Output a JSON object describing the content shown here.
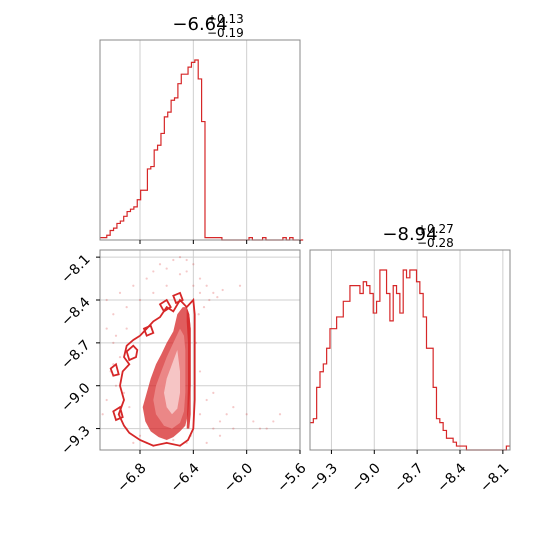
{
  "chart_data": [
    {
      "type": "histogram",
      "panel": "top-left",
      "title": {
        "main": "−6.64",
        "plus": "+0.13",
        "minus": "−0.19"
      },
      "xlim": [
        -7.1,
        -5.6
      ],
      "xticks": [
        -6.8,
        -6.4,
        -6.0,
        -5.6
      ],
      "color": "#d62728",
      "grid": true,
      "bin_edges_start": -7.1,
      "bin_width": 0.0254,
      "counts": [
        1,
        1,
        2,
        4,
        5,
        7,
        8,
        10,
        12,
        13,
        14,
        17,
        21,
        21,
        30,
        31,
        38,
        40,
        45,
        52,
        54,
        59,
        60,
        66,
        70,
        70,
        73,
        75,
        76,
        68,
        50,
        1,
        1,
        1,
        1,
        1,
        0,
        0,
        0,
        0,
        0,
        0,
        0,
        0,
        1,
        0,
        0,
        0,
        1,
        0,
        0,
        0,
        0,
        0,
        1,
        0,
        1,
        0,
        0,
        0
      ]
    },
    {
      "type": "histogram",
      "panel": "bottom-right",
      "title": {
        "main": "−8.94",
        "plus": "+0.27",
        "minus": "−0.28"
      },
      "xlim": [
        -9.45,
        -8.05
      ],
      "xticks": [
        -9.3,
        -9.0,
        -8.7,
        -8.4,
        -8.1
      ],
      "color": "#d62728",
      "grid": true,
      "bin_edges_start": -9.45,
      "bin_width": 0.0233,
      "counts": [
        7,
        8,
        16,
        20,
        22,
        26,
        31,
        31,
        34,
        34,
        38,
        38,
        42,
        42,
        42,
        40,
        43,
        42,
        40,
        35,
        38,
        46,
        46,
        40,
        33,
        42,
        40,
        35,
        46,
        44,
        46,
        46,
        43,
        40,
        34,
        26,
        26,
        16,
        8,
        7,
        5,
        3,
        3,
        2,
        1,
        1,
        1,
        0,
        0,
        0,
        0,
        0,
        0,
        0,
        0,
        0,
        0,
        0,
        0,
        1
      ]
    },
    {
      "type": "contour",
      "panel": "bottom-left",
      "xlim": [
        -7.1,
        -5.6
      ],
      "ylim": [
        -9.45,
        -8.05
      ],
      "xticks": [
        -6.8,
        -6.4,
        -6.0,
        -5.6
      ],
      "yticks": [
        -8.1,
        -8.4,
        -8.7,
        -9.0,
        -9.3
      ],
      "xticklabels": [
        "−6.8",
        "−6.4",
        "−6.0",
        "−5.6"
      ],
      "yticklabels": [
        "−8.1",
        "−8.4",
        "−8.7",
        "−9.0",
        "−9.3"
      ],
      "color": "#d62728",
      "grid": true,
      "scatter_points": [
        [
          -6.4,
          -8.3
        ],
        [
          -6.35,
          -8.35
        ],
        [
          -6.3,
          -8.3
        ],
        [
          -6.35,
          -8.25
        ],
        [
          -6.45,
          -8.2
        ],
        [
          -6.5,
          -8.22
        ],
        [
          -6.6,
          -8.3
        ],
        [
          -6.7,
          -8.35
        ],
        [
          -6.8,
          -8.4
        ],
        [
          -6.9,
          -8.45
        ],
        [
          -7.0,
          -8.5
        ],
        [
          -7.05,
          -8.6
        ],
        [
          -7.0,
          -8.7
        ],
        [
          -6.95,
          -8.8
        ],
        [
          -7.02,
          -8.9
        ],
        [
          -6.98,
          -9.0
        ],
        [
          -7.05,
          -9.1
        ],
        [
          -6.95,
          -9.2
        ],
        [
          -6.9,
          -9.3
        ],
        [
          -6.85,
          -9.4
        ],
        [
          -6.2,
          -9.35
        ],
        [
          -6.1,
          -9.3
        ],
        [
          -5.95,
          -9.25
        ],
        [
          -5.85,
          -9.3
        ],
        [
          -5.75,
          -9.2
        ],
        [
          -6.05,
          -8.3
        ],
        [
          -6.1,
          -9.15
        ],
        [
          -6.25,
          -9.3
        ],
        [
          -6.3,
          -9.4
        ],
        [
          -6.35,
          -9.2
        ],
        [
          -6.7,
          -8.2
        ],
        [
          -6.75,
          -8.25
        ],
        [
          -6.65,
          -8.15
        ],
        [
          -6.6,
          -8.18
        ],
        [
          -6.55,
          -8.12
        ],
        [
          -6.5,
          -8.1
        ],
        [
          -6.85,
          -8.3
        ],
        [
          -6.95,
          -8.35
        ],
        [
          -7.05,
          -8.4
        ],
        [
          -7.08,
          -9.2
        ],
        [
          -6.2,
          -9.25
        ],
        [
          -6.15,
          -9.2
        ],
        [
          -6.3,
          -9.1
        ],
        [
          -6.25,
          -9.05
        ],
        [
          -6.35,
          -8.9
        ],
        [
          -6.38,
          -8.7
        ],
        [
          -6.36,
          -8.5
        ],
        [
          -6.32,
          -8.45
        ],
        [
          -6.28,
          -8.4
        ],
        [
          -6.25,
          -8.35
        ],
        [
          -6.22,
          -8.38
        ],
        [
          -6.18,
          -8.33
        ],
        [
          -6.9,
          -8.6
        ],
        [
          -6.98,
          -8.65
        ],
        [
          -7.0,
          -8.85
        ],
        [
          -6.92,
          -9.05
        ],
        [
          -6.88,
          -9.15
        ],
        [
          -6.8,
          -9.35
        ],
        [
          -6.75,
          -9.4
        ],
        [
          -6.7,
          -9.42
        ],
        [
          -6.6,
          -9.4
        ],
        [
          -6.55,
          -9.38
        ],
        [
          -6.5,
          -9.42
        ],
        [
          -6.45,
          -9.4
        ],
        [
          -6.42,
          -9.35
        ],
        [
          -5.9,
          -9.3
        ],
        [
          -5.8,
          -9.25
        ],
        [
          -6.0,
          -9.2
        ],
        [
          -6.4,
          -8.15
        ],
        [
          -6.45,
          -8.12
        ]
      ],
      "contours": [
        {
          "fill": "#d62728",
          "fill_opacity": 0.75,
          "points": [
            [
              -6.48,
              -8.45
            ],
            [
              -6.52,
              -8.5
            ],
            [
              -6.55,
              -8.62
            ],
            [
              -6.6,
              -8.7
            ],
            [
              -6.64,
              -8.78
            ],
            [
              -6.68,
              -8.85
            ],
            [
              -6.72,
              -8.95
            ],
            [
              -6.75,
              -9.05
            ],
            [
              -6.78,
              -9.15
            ],
            [
              -6.76,
              -9.25
            ],
            [
              -6.72,
              -9.32
            ],
            [
              -6.66,
              -9.36
            ],
            [
              -6.6,
              -9.38
            ],
            [
              -6.55,
              -9.36
            ],
            [
              -6.5,
              -9.32
            ],
            [
              -6.46,
              -9.28
            ],
            [
              -6.44,
              -9.2
            ],
            [
              -6.43,
              -9.1
            ],
            [
              -6.42,
              -9.0
            ],
            [
              -6.42,
              -8.9
            ],
            [
              -6.42,
              -8.8
            ],
            [
              -6.42,
              -8.7
            ],
            [
              -6.42,
              -8.6
            ],
            [
              -6.43,
              -8.5
            ],
            [
              -6.45,
              -8.45
            ]
          ]
        },
        {
          "fill": "#ec8c8c",
          "fill_opacity": 0.9,
          "points": [
            [
              -6.5,
              -8.6
            ],
            [
              -6.55,
              -8.7
            ],
            [
              -6.6,
              -8.8
            ],
            [
              -6.64,
              -8.9
            ],
            [
              -6.68,
              -9.0
            ],
            [
              -6.7,
              -9.1
            ],
            [
              -6.68,
              -9.2
            ],
            [
              -6.62,
              -9.28
            ],
            [
              -6.56,
              -9.3
            ],
            [
              -6.5,
              -9.26
            ],
            [
              -6.47,
              -9.18
            ],
            [
              -6.46,
              -9.05
            ],
            [
              -6.46,
              -8.9
            ],
            [
              -6.46,
              -8.75
            ],
            [
              -6.47,
              -8.65
            ]
          ]
        },
        {
          "fill": "#f7cccc",
          "fill_opacity": 0.9,
          "points": [
            [
              -6.52,
              -8.75
            ],
            [
              -6.56,
              -8.85
            ],
            [
              -6.6,
              -8.95
            ],
            [
              -6.62,
              -9.05
            ],
            [
              -6.6,
              -9.15
            ],
            [
              -6.56,
              -9.2
            ],
            [
              -6.52,
              -9.16
            ],
            [
              -6.5,
              -9.05
            ],
            [
              -6.5,
              -8.9
            ]
          ]
        },
        {
          "fill": "#d62728",
          "fill_opacity": 0.85,
          "points": [
            [
              -6.45,
              -8.45
            ],
            [
              -6.43,
              -8.5
            ],
            [
              -6.42,
              -8.6
            ],
            [
              -6.42,
              -8.8
            ],
            [
              -6.42,
              -9.0
            ],
            [
              -6.42,
              -9.2
            ],
            [
              -6.43,
              -9.3
            ],
            [
              -6.45,
              -9.3
            ],
            [
              -6.44,
              -9.0
            ],
            [
              -6.44,
              -8.7
            ],
            [
              -6.45,
              -8.55
            ]
          ]
        }
      ],
      "outlines": [
        [
          [
            -6.4,
            -8.4
          ],
          [
            -6.45,
            -8.45
          ],
          [
            -6.5,
            -8.4
          ],
          [
            -6.55,
            -8.48
          ],
          [
            -6.6,
            -8.45
          ],
          [
            -6.65,
            -8.52
          ],
          [
            -6.7,
            -8.55
          ],
          [
            -6.75,
            -8.6
          ],
          [
            -6.8,
            -8.65
          ],
          [
            -6.85,
            -8.68
          ],
          [
            -6.9,
            -8.72
          ],
          [
            -6.92,
            -8.8
          ],
          [
            -6.88,
            -8.85
          ],
          [
            -6.93,
            -8.9
          ],
          [
            -6.95,
            -9.0
          ],
          [
            -6.92,
            -9.1
          ],
          [
            -6.96,
            -9.2
          ],
          [
            -6.92,
            -9.28
          ],
          [
            -6.88,
            -9.33
          ],
          [
            -6.8,
            -9.38
          ],
          [
            -6.7,
            -9.42
          ],
          [
            -6.6,
            -9.4
          ],
          [
            -6.5,
            -9.42
          ],
          [
            -6.44,
            -9.38
          ],
          [
            -6.4,
            -9.3
          ],
          [
            -6.39,
            -9.1
          ],
          [
            -6.39,
            -8.9
          ],
          [
            -6.39,
            -8.7
          ],
          [
            -6.39,
            -8.5
          ],
          [
            -6.4,
            -8.4
          ]
        ],
        [
          [
            -6.85,
            -8.72
          ],
          [
            -6.9,
            -8.76
          ],
          [
            -6.88,
            -8.82
          ],
          [
            -6.83,
            -8.8
          ],
          [
            -6.82,
            -8.75
          ]
        ],
        [
          [
            -6.98,
            -8.85
          ],
          [
            -7.02,
            -8.88
          ],
          [
            -7.0,
            -8.93
          ],
          [
            -6.96,
            -8.92
          ]
        ],
        [
          [
            -6.95,
            -9.15
          ],
          [
            -7.0,
            -9.18
          ],
          [
            -6.98,
            -9.24
          ],
          [
            -6.93,
            -9.22
          ]
        ],
        [
          [
            -6.6,
            -8.4
          ],
          [
            -6.65,
            -8.43
          ],
          [
            -6.62,
            -8.48
          ],
          [
            -6.57,
            -8.45
          ]
        ],
        [
          [
            -6.72,
            -8.58
          ],
          [
            -6.77,
            -8.6
          ],
          [
            -6.75,
            -8.65
          ],
          [
            -6.7,
            -8.63
          ]
        ],
        [
          [
            -6.5,
            -8.35
          ],
          [
            -6.55,
            -8.37
          ],
          [
            -6.53,
            -8.42
          ],
          [
            -6.48,
            -8.4
          ]
        ]
      ]
    }
  ]
}
